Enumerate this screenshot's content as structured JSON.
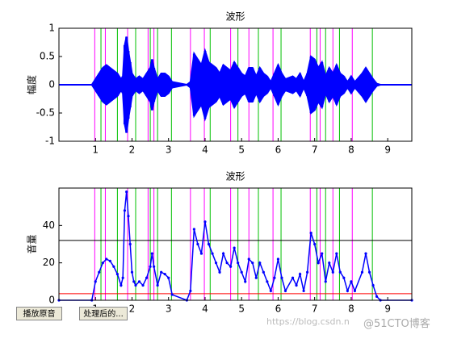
{
  "buttons": [
    "播放原音",
    "处理后的..."
  ],
  "watermark": [
    "https://blog.csdn.n",
    "@51CTO博客"
  ],
  "chart_data": [
    {
      "type": "waveform",
      "title": "波形",
      "ylabel": "幅度",
      "xlim": [
        0,
        9.66
      ],
      "ylim": [
        -1,
        1
      ],
      "xticks": [
        1,
        2,
        3,
        4,
        5,
        6,
        7,
        8,
        9
      ],
      "yticks": [
        -1,
        -0.5,
        0,
        0.5,
        1
      ],
      "series": [
        {
          "color": "#0000ff",
          "x": [
            0,
            0.9,
            1.0,
            1.1,
            1.2,
            1.3,
            1.4,
            1.5,
            1.6,
            1.7,
            1.75,
            1.8,
            1.85,
            1.9,
            1.95,
            2.0,
            2.05,
            2.1,
            2.2,
            2.3,
            2.4,
            2.5,
            2.55,
            2.6,
            2.7,
            2.8,
            2.9,
            3.0,
            3.1,
            3.5,
            3.6,
            3.7,
            3.8,
            3.9,
            4.0,
            4.1,
            4.2,
            4.3,
            4.4,
            4.5,
            4.6,
            4.7,
            4.8,
            4.9,
            5.0,
            5.1,
            5.2,
            5.3,
            5.4,
            5.5,
            5.6,
            5.7,
            5.8,
            5.9,
            6.0,
            6.1,
            6.2,
            6.4,
            6.5,
            6.6,
            6.7,
            6.8,
            6.9,
            7.0,
            7.1,
            7.2,
            7.3,
            7.4,
            7.5,
            7.6,
            7.7,
            7.8,
            7.9,
            8.0,
            8.1,
            8.3,
            8.4,
            8.5,
            8.6,
            8.7,
            8.8,
            9.66
          ],
          "values": [
            0,
            0,
            0.1,
            0.2,
            0.3,
            0.35,
            0.3,
            0.25,
            0.2,
            0.1,
            0.15,
            0.7,
            0.85,
            0.6,
            0.4,
            0.2,
            0.15,
            0.1,
            0.15,
            0.1,
            0.2,
            0.3,
            0.45,
            0.3,
            0.1,
            0.2,
            0.2,
            0.15,
            0.05,
            0,
            0.05,
            0.55,
            0.45,
            0.35,
            0.6,
            0.4,
            0.35,
            0.3,
            0.2,
            0.35,
            0.3,
            0.25,
            0.4,
            0.3,
            0.2,
            0.15,
            0.3,
            0.3,
            0.15,
            0.3,
            0.2,
            0.15,
            0.05,
            0.2,
            0.35,
            0.2,
            0.1,
            0.15,
            0.1,
            0.2,
            0.05,
            0.2,
            0.5,
            0.45,
            0.3,
            0.4,
            0.15,
            0.3,
            0.2,
            0.35,
            0.2,
            0.15,
            0.05,
            0.15,
            0.05,
            0.2,
            0.3,
            0.2,
            0.1,
            0.02,
            0,
            0
          ]
        }
      ],
      "vlines": [
        {
          "color": "#ff00ff",
          "x": [
            0.98,
            1.27,
            1.88,
            2.44,
            2.6,
            3.6,
            3.98,
            4.7,
            5.2,
            5.86,
            6.88,
            7.15,
            7.5,
            8.03
          ]
        },
        {
          "color": "#00c000",
          "x": [
            1.15,
            1.6,
            2.1,
            2.5,
            2.7,
            3.08,
            4.14,
            4.9,
            5.46,
            6.08,
            7.06,
            7.3,
            7.68,
            8.58
          ]
        }
      ]
    },
    {
      "type": "energy",
      "title": "波形",
      "ylabel": "音量",
      "xlim": [
        0,
        9.66
      ],
      "ylim": [
        0,
        60
      ],
      "xticks": [
        1,
        2,
        3,
        4,
        5,
        6,
        7,
        8,
        9
      ],
      "yticks": [
        0,
        20,
        40
      ],
      "series": [
        {
          "color": "#0000ff",
          "x": [
            0,
            0.9,
            1.0,
            1.1,
            1.2,
            1.3,
            1.4,
            1.5,
            1.6,
            1.7,
            1.75,
            1.8,
            1.85,
            1.9,
            1.95,
            2.0,
            2.05,
            2.1,
            2.2,
            2.3,
            2.4,
            2.5,
            2.55,
            2.6,
            2.7,
            2.8,
            2.9,
            3.0,
            3.1,
            3.5,
            3.6,
            3.7,
            3.8,
            3.9,
            4.0,
            4.1,
            4.2,
            4.3,
            4.4,
            4.5,
            4.6,
            4.7,
            4.8,
            4.9,
            5.0,
            5.1,
            5.2,
            5.3,
            5.4,
            5.5,
            5.6,
            5.7,
            5.8,
            5.9,
            6.0,
            6.1,
            6.2,
            6.4,
            6.5,
            6.6,
            6.7,
            6.8,
            6.9,
            7.0,
            7.1,
            7.2,
            7.3,
            7.4,
            7.5,
            7.6,
            7.7,
            7.8,
            7.9,
            8.0,
            8.1,
            8.3,
            8.4,
            8.5,
            8.6,
            8.7,
            8.8,
            9.66
          ],
          "values": [
            0,
            0,
            10,
            15,
            20,
            22,
            21,
            18,
            14,
            8,
            12,
            48,
            58,
            45,
            30,
            15,
            10,
            8,
            10,
            8,
            12,
            18,
            25,
            18,
            8,
            15,
            14,
            12,
            3,
            0,
            5,
            38,
            30,
            25,
            42,
            30,
            25,
            20,
            15,
            25,
            20,
            18,
            28,
            20,
            15,
            10,
            22,
            20,
            12,
            20,
            15,
            10,
            5,
            12,
            22,
            12,
            5,
            12,
            8,
            14,
            5,
            15,
            36,
            30,
            20,
            25,
            10,
            20,
            15,
            25,
            15,
            12,
            5,
            10,
            5,
            15,
            25,
            15,
            8,
            2,
            0,
            0
          ]
        }
      ],
      "hlines": [
        {
          "color": "#000000",
          "y": 32
        },
        {
          "color": "#ff0000",
          "y": 3.5
        }
      ],
      "vlines": [
        {
          "color": "#ff00ff",
          "x": [
            0.98,
            1.27,
            1.88,
            2.44,
            2.6,
            3.6,
            3.98,
            4.7,
            5.2,
            5.86,
            6.88,
            7.15,
            7.5,
            8.03
          ]
        },
        {
          "color": "#00c000",
          "x": [
            1.15,
            1.6,
            2.1,
            2.5,
            2.7,
            3.08,
            4.14,
            4.9,
            5.46,
            6.08,
            7.06,
            7.3,
            7.68,
            8.58
          ]
        }
      ]
    }
  ]
}
